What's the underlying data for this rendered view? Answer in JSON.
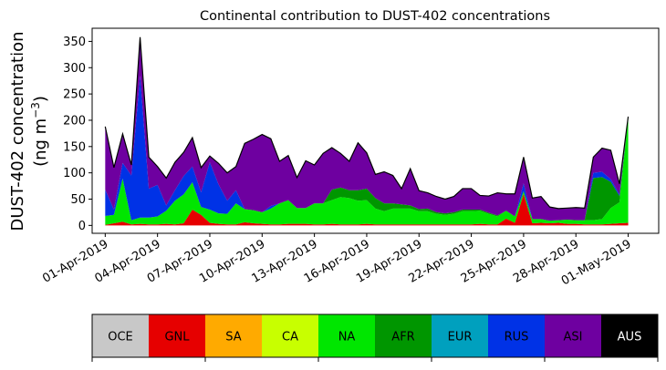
{
  "chart_data": {
    "type": "area",
    "stacked": true,
    "title": "Continental contribution to DUST-402 concentrations",
    "ylabel_line1": "DUST-402 concentration",
    "ylabel_line2_prefix": "(ng m",
    "ylabel_line2_sup": "−3",
    "ylabel_line2_suffix": ")",
    "xlabel": "",
    "ylim": [
      -15,
      375
    ],
    "yticks": [
      0,
      50,
      100,
      150,
      200,
      250,
      300,
      350
    ],
    "xlim": [
      "2019-03-31T06:00",
      "2019-05-02T18:00"
    ],
    "xticks": [
      {
        "date": "2019-04-01",
        "label": "01-Apr-2019"
      },
      {
        "date": "2019-04-04",
        "label": "04-Apr-2019"
      },
      {
        "date": "2019-04-07",
        "label": "07-Apr-2019"
      },
      {
        "date": "2019-04-10",
        "label": "10-Apr-2019"
      },
      {
        "date": "2019-04-13",
        "label": "13-Apr-2019"
      },
      {
        "date": "2019-04-16",
        "label": "16-Apr-2019"
      },
      {
        "date": "2019-04-19",
        "label": "19-Apr-2019"
      },
      {
        "date": "2019-04-22",
        "label": "22-Apr-2019"
      },
      {
        "date": "2019-04-25",
        "label": "25-Apr-2019"
      },
      {
        "date": "2019-04-28",
        "label": "28-Apr-2019"
      },
      {
        "date": "2019-05-01",
        "label": "01-May-2019"
      }
    ],
    "x": [
      "2019-04-01T00:00",
      "2019-04-01T12:00",
      "2019-04-02T00:00",
      "2019-04-02T12:00",
      "2019-04-03T00:00",
      "2019-04-03T12:00",
      "2019-04-04T00:00",
      "2019-04-04T12:00",
      "2019-04-05T00:00",
      "2019-04-05T12:00",
      "2019-04-06T00:00",
      "2019-04-06T12:00",
      "2019-04-07T00:00",
      "2019-04-07T12:00",
      "2019-04-08T00:00",
      "2019-04-08T12:00",
      "2019-04-09T00:00",
      "2019-04-09T12:00",
      "2019-04-10T00:00",
      "2019-04-10T12:00",
      "2019-04-11T00:00",
      "2019-04-11T12:00",
      "2019-04-12T00:00",
      "2019-04-12T12:00",
      "2019-04-13T00:00",
      "2019-04-13T12:00",
      "2019-04-14T00:00",
      "2019-04-14T12:00",
      "2019-04-15T00:00",
      "2019-04-15T12:00",
      "2019-04-16T00:00",
      "2019-04-16T12:00",
      "2019-04-17T00:00",
      "2019-04-17T12:00",
      "2019-04-18T00:00",
      "2019-04-18T12:00",
      "2019-04-19T00:00",
      "2019-04-19T12:00",
      "2019-04-20T00:00",
      "2019-04-20T12:00",
      "2019-04-21T00:00",
      "2019-04-21T12:00",
      "2019-04-22T00:00",
      "2019-04-22T12:00",
      "2019-04-23T00:00",
      "2019-04-23T12:00",
      "2019-04-24T00:00",
      "2019-04-24T12:00",
      "2019-04-25T00:00",
      "2019-04-25T12:00",
      "2019-04-26T00:00",
      "2019-04-26T12:00",
      "2019-04-27T00:00",
      "2019-04-27T12:00",
      "2019-04-28T00:00",
      "2019-04-28T12:00",
      "2019-04-29T00:00",
      "2019-04-29T12:00",
      "2019-04-30T00:00",
      "2019-04-30T12:00",
      "2019-05-01T00:00"
    ],
    "series": [
      {
        "name": "OCE",
        "color": "#c8c8c8",
        "values": [
          0,
          0,
          0,
          0,
          0,
          0,
          0,
          0,
          0,
          0,
          0,
          0,
          0,
          0,
          0,
          0,
          0,
          0,
          0,
          0,
          0,
          0,
          0,
          0,
          0,
          0,
          0,
          0,
          0,
          0,
          0,
          0,
          0,
          0,
          0,
          0,
          0,
          0,
          0,
          0,
          0,
          0,
          0,
          0,
          0,
          0,
          0,
          0,
          0,
          0,
          0,
          0,
          0,
          0,
          0,
          0,
          0,
          0,
          0,
          0,
          0
        ]
      },
      {
        "name": "GNL",
        "color": "#e60000",
        "values": [
          1,
          4,
          7,
          2,
          3,
          2,
          2,
          3,
          2,
          4,
          30,
          20,
          5,
          3,
          2,
          2,
          6,
          4,
          3,
          2,
          2,
          3,
          3,
          3,
          2,
          2,
          3,
          2,
          2,
          2,
          3,
          2,
          2,
          2,
          2,
          2,
          2,
          2,
          2,
          2,
          2,
          2,
          2,
          3,
          2,
          2,
          13,
          5,
          60,
          4,
          5,
          4,
          5,
          3,
          3,
          2,
          2,
          2,
          3,
          4,
          5
        ]
      },
      {
        "name": "SA",
        "color": "#ffaa00",
        "values": [
          0,
          0,
          0,
          0,
          0,
          0,
          0,
          0,
          0,
          0,
          0,
          0,
          0,
          0,
          0,
          0,
          0,
          0,
          0,
          0,
          0,
          0,
          0,
          0,
          0,
          0,
          0,
          0,
          0,
          0,
          0,
          0,
          0,
          0,
          0,
          0,
          0,
          0,
          0,
          0,
          0,
          0,
          0,
          0,
          0,
          0,
          0,
          0,
          0,
          0,
          0,
          0,
          0,
          0,
          0,
          0,
          0,
          0,
          0,
          0,
          0
        ]
      },
      {
        "name": "CA",
        "color": "#c8ff00",
        "values": [
          0,
          0,
          0,
          0,
          0,
          0,
          0,
          0,
          0,
          0,
          0,
          0,
          0,
          0,
          0,
          0,
          0,
          0,
          0,
          0,
          0,
          0,
          0,
          0,
          0,
          0,
          0,
          0,
          0,
          0,
          0,
          0,
          0,
          0,
          0,
          0,
          0,
          0,
          0,
          0,
          0,
          0,
          0,
          0,
          0,
          0,
          0,
          0,
          0,
          0,
          0,
          0,
          0,
          0,
          0,
          0,
          0,
          0,
          0,
          0,
          0
        ]
      },
      {
        "name": "NA",
        "color": "#00e600",
        "values": [
          17,
          16,
          82,
          8,
          12,
          13,
          15,
          25,
          45,
          55,
          52,
          15,
          25,
          20,
          20,
          40,
          25,
          25,
          22,
          30,
          40,
          45,
          30,
          30,
          40,
          40,
          45,
          52,
          50,
          45,
          45,
          30,
          25,
          30,
          30,
          30,
          25,
          25,
          20,
          18,
          20,
          25,
          25,
          25,
          20,
          15,
          15,
          12,
          5,
          8,
          7,
          5,
          5,
          8,
          7,
          8,
          8,
          10,
          30,
          40,
          200
        ]
      },
      {
        "name": "AFR",
        "color": "#009600",
        "values": [
          0,
          0,
          0,
          0,
          0,
          0,
          0,
          0,
          0,
          0,
          0,
          0,
          0,
          0,
          0,
          0,
          0,
          0,
          0,
          0,
          0,
          0,
          0,
          0,
          0,
          0,
          20,
          18,
          15,
          20,
          22,
          20,
          15,
          10,
          8,
          6,
          4,
          5,
          3,
          3,
          3,
          3,
          3,
          2,
          2,
          2,
          0,
          0,
          0,
          0,
          0,
          0,
          0,
          0,
          0,
          0,
          80,
          80,
          50,
          12,
          0
        ]
      },
      {
        "name": "EUR",
        "color": "#00a0be",
        "values": [
          0,
          0,
          0,
          0,
          0,
          0,
          0,
          0,
          0,
          0,
          0,
          0,
          0,
          0,
          0,
          0,
          0,
          0,
          0,
          0,
          0,
          0,
          0,
          0,
          0,
          0,
          0,
          0,
          0,
          0,
          0,
          0,
          0,
          0,
          0,
          0,
          0,
          0,
          0,
          0,
          0,
          0,
          0,
          0,
          0,
          0,
          0,
          0,
          0,
          0,
          0,
          0,
          0,
          0,
          0,
          0,
          0,
          0,
          0,
          0,
          0
        ]
      },
      {
        "name": "RUS",
        "color": "#0032e6",
        "values": [
          50,
          10,
          30,
          85,
          270,
          55,
          60,
          10,
          20,
          35,
          30,
          28,
          90,
          55,
          25,
          25,
          0,
          0,
          0,
          5,
          0,
          0,
          0,
          0,
          0,
          0,
          0,
          0,
          0,
          0,
          0,
          0,
          0,
          0,
          0,
          0,
          0,
          0,
          0,
          0,
          0,
          0,
          0,
          0,
          0,
          0,
          0,
          0,
          15,
          0,
          0,
          0,
          0,
          0,
          0,
          0,
          10,
          10,
          5,
          3,
          2
        ]
      },
      {
        "name": "ASI",
        "color": "#6e00a0",
        "values": [
          120,
          80,
          55,
          20,
          73,
          60,
          35,
          52,
          53,
          45,
          55,
          47,
          12,
          40,
          53,
          45,
          125,
          135,
          148,
          128,
          80,
          85,
          58,
          90,
          73,
          95,
          80,
          65,
          55,
          90,
          68,
          45,
          60,
          53,
          30,
          70,
          35,
          30,
          30,
          27,
          30,
          40,
          40,
          27,
          32,
          43,
          32,
          43,
          50,
          40,
          43,
          26,
          22,
          22,
          24,
          23,
          30,
          45,
          55,
          20,
          0
        ]
      },
      {
        "name": "AUS",
        "color": "#000000",
        "values": [
          0,
          0,
          0,
          0,
          0,
          0,
          0,
          0,
          0,
          0,
          0,
          0,
          0,
          0,
          0,
          0,
          0,
          0,
          0,
          0,
          0,
          0,
          0,
          0,
          0,
          0,
          0,
          0,
          0,
          0,
          0,
          0,
          0,
          0,
          0,
          0,
          0,
          0,
          0,
          0,
          0,
          0,
          0,
          0,
          0,
          0,
          0,
          0,
          0,
          0,
          0,
          0,
          0,
          0,
          0,
          0,
          0,
          0,
          0,
          0,
          0
        ]
      }
    ],
    "legend_placement": "bottom colorbar",
    "grid": false
  }
}
